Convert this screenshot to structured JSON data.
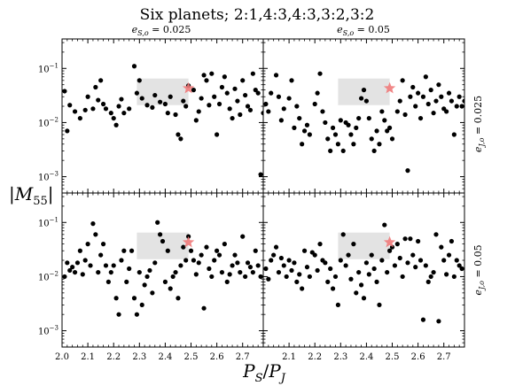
{
  "chart_data": {
    "type": "scatter",
    "title": "Six planets; 2:1,4:3,4:3,3:2,3:2",
    "xlabel": "P_S/P_J",
    "ylabel": "|M_55|",
    "x_ticks": [
      "2.0",
      "2.1",
      "2.2",
      "2.3",
      "2.4",
      "2.5",
      "2.6",
      "2.7"
    ],
    "y_ticks": [
      "10^-3",
      "10^-2",
      "10^-1"
    ],
    "xlim": [
      2.0,
      2.78
    ],
    "ylim": [
      0.0005,
      0.35
    ],
    "yscale": "log",
    "col_titles": [
      "e_{S,o} = 0.025",
      "e_{S,o} = 0.05"
    ],
    "row_labels": [
      "e_{J,o} = 0.025",
      "e_{J,o} = 0.05"
    ],
    "highlight_box": {
      "x": [
        2.29,
        2.49
      ],
      "y": [
        0.021,
        0.065
      ],
      "color": "#d9d9d9"
    },
    "target": {
      "x": 2.49,
      "y": 0.043,
      "marker": "star",
      "color": "#f07a7a"
    },
    "marker_color": "#000000",
    "panels": [
      {
        "row": 0,
        "col": 0,
        "points": [
          [
            2.01,
            0.038
          ],
          [
            2.02,
            0.007
          ],
          [
            2.03,
            0.021
          ],
          [
            2.05,
            0.016
          ],
          [
            2.07,
            0.012
          ],
          [
            2.09,
            0.017
          ],
          [
            2.1,
            0.03
          ],
          [
            2.12,
            0.018
          ],
          [
            2.13,
            0.045
          ],
          [
            2.14,
            0.026
          ],
          [
            2.15,
            0.06
          ],
          [
            2.16,
            0.022
          ],
          [
            2.17,
            0.018
          ],
          [
            2.19,
            0.015
          ],
          [
            2.2,
            0.012
          ],
          [
            2.21,
            0.009
          ],
          [
            2.22,
            0.02
          ],
          [
            2.23,
            0.027
          ],
          [
            2.24,
            0.015
          ],
          [
            2.26,
            0.018
          ],
          [
            2.28,
            0.11
          ],
          [
            2.29,
            0.035
          ],
          [
            2.3,
            0.06
          ],
          [
            2.31,
            0.028
          ],
          [
            2.33,
            0.021
          ],
          [
            2.35,
            0.019
          ],
          [
            2.36,
            0.032
          ],
          [
            2.38,
            0.024
          ],
          [
            2.4,
            0.022
          ],
          [
            2.41,
            0.015
          ],
          [
            2.42,
            0.03
          ],
          [
            2.44,
            0.014
          ],
          [
            2.45,
            0.006
          ],
          [
            2.46,
            0.005
          ],
          [
            2.47,
            0.025
          ],
          [
            2.48,
            0.02
          ],
          [
            2.49,
            0.048
          ],
          [
            2.51,
            0.04
          ],
          [
            2.52,
            0.011
          ],
          [
            2.53,
            0.016
          ],
          [
            2.54,
            0.028
          ],
          [
            2.55,
            0.075
          ],
          [
            2.56,
            0.06
          ],
          [
            2.57,
            0.021
          ],
          [
            2.58,
            0.08
          ],
          [
            2.59,
            0.03
          ],
          [
            2.6,
            0.006
          ],
          [
            2.61,
            0.022
          ],
          [
            2.62,
            0.045
          ],
          [
            2.63,
            0.07
          ],
          [
            2.64,
            0.035
          ],
          [
            2.65,
            0.018
          ],
          [
            2.66,
            0.012
          ],
          [
            2.67,
            0.042
          ],
          [
            2.68,
            0.025
          ],
          [
            2.69,
            0.014
          ],
          [
            2.7,
            0.06
          ],
          [
            2.71,
            0.032
          ],
          [
            2.72,
            0.02
          ],
          [
            2.73,
            0.017
          ],
          [
            2.74,
            0.08
          ],
          [
            2.75,
            0.04
          ],
          [
            2.76,
            0.035
          ],
          [
            2.77,
            0.0011
          ],
          [
            2.78,
            0.015
          ]
        ]
      },
      {
        "row": 0,
        "col": 1,
        "points": [
          [
            2.01,
            0.022
          ],
          [
            2.02,
            0.016
          ],
          [
            2.03,
            0.035
          ],
          [
            2.05,
            0.075
          ],
          [
            2.06,
            0.03
          ],
          [
            2.07,
            0.011
          ],
          [
            2.08,
            0.018
          ],
          [
            2.1,
            0.028
          ],
          [
            2.11,
            0.06
          ],
          [
            2.12,
            0.008
          ],
          [
            2.13,
            0.02
          ],
          [
            2.14,
            0.012
          ],
          [
            2.15,
            0.004
          ],
          [
            2.16,
            0.007
          ],
          [
            2.17,
            0.009
          ],
          [
            2.18,
            0.006
          ],
          [
            2.2,
            0.022
          ],
          [
            2.21,
            0.035
          ],
          [
            2.22,
            0.08
          ],
          [
            2.23,
            0.016
          ],
          [
            2.24,
            0.01
          ],
          [
            2.25,
            0.005
          ],
          [
            2.26,
            0.003
          ],
          [
            2.27,
            0.008
          ],
          [
            2.28,
            0.006
          ],
          [
            2.29,
            0.004
          ],
          [
            2.3,
            0.011
          ],
          [
            2.31,
            0.003
          ],
          [
            2.32,
            0.01
          ],
          [
            2.33,
            0.009
          ],
          [
            2.34,
            0.006
          ],
          [
            2.35,
            0.004
          ],
          [
            2.36,
            0.008
          ],
          [
            2.37,
            0.012
          ],
          [
            2.38,
            0.028
          ],
          [
            2.39,
            0.04
          ],
          [
            2.4,
            0.025
          ],
          [
            2.41,
            0.012
          ],
          [
            2.42,
            0.005
          ],
          [
            2.43,
            0.003
          ],
          [
            2.44,
            0.007
          ],
          [
            2.45,
            0.004
          ],
          [
            2.46,
            0.016
          ],
          [
            2.47,
            0.011
          ],
          [
            2.48,
            0.007
          ],
          [
            2.49,
            0.008
          ],
          [
            2.5,
            0.005
          ],
          [
            2.52,
            0.016
          ],
          [
            2.53,
            0.025
          ],
          [
            2.54,
            0.06
          ],
          [
            2.55,
            0.014
          ],
          [
            2.56,
            0.0013
          ],
          [
            2.57,
            0.03
          ],
          [
            2.58,
            0.045
          ],
          [
            2.59,
            0.02
          ],
          [
            2.6,
            0.035
          ],
          [
            2.61,
            0.012
          ],
          [
            2.62,
            0.03
          ],
          [
            2.63,
            0.07
          ],
          [
            2.64,
            0.022
          ],
          [
            2.65,
            0.04
          ],
          [
            2.66,
            0.015
          ],
          [
            2.67,
            0.025
          ],
          [
            2.68,
            0.05
          ],
          [
            2.69,
            0.03
          ],
          [
            2.7,
            0.018
          ],
          [
            2.71,
            0.016
          ],
          [
            2.72,
            0.035
          ],
          [
            2.73,
            0.025
          ],
          [
            2.74,
            0.006
          ],
          [
            2.75,
            0.02
          ],
          [
            2.76,
            0.03
          ],
          [
            2.77,
            0.02
          ],
          [
            2.78,
            0.025
          ]
        ]
      },
      {
        "row": 1,
        "col": 0,
        "points": [
          [
            2.01,
            0.01
          ],
          [
            2.02,
            0.018
          ],
          [
            2.03,
            0.013
          ],
          [
            2.04,
            0.015
          ],
          [
            2.05,
            0.012
          ],
          [
            2.06,
            0.018
          ],
          [
            2.07,
            0.03
          ],
          [
            2.08,
            0.011
          ],
          [
            2.09,
            0.02
          ],
          [
            2.1,
            0.04
          ],
          [
            2.11,
            0.016
          ],
          [
            2.12,
            0.095
          ],
          [
            2.13,
            0.06
          ],
          [
            2.14,
            0.012
          ],
          [
            2.15,
            0.025
          ],
          [
            2.16,
            0.04
          ],
          [
            2.17,
            0.016
          ],
          [
            2.18,
            0.008
          ],
          [
            2.19,
            0.012
          ],
          [
            2.2,
            0.016
          ],
          [
            2.21,
            0.004
          ],
          [
            2.22,
            0.002
          ],
          [
            2.23,
            0.02
          ],
          [
            2.24,
            0.03
          ],
          [
            2.25,
            0.008
          ],
          [
            2.26,
            0.014
          ],
          [
            2.27,
            0.03
          ],
          [
            2.28,
            0.004
          ],
          [
            2.29,
            0.002
          ],
          [
            2.3,
            0.012
          ],
          [
            2.31,
            0.003
          ],
          [
            2.32,
            0.007
          ],
          [
            2.33,
            0.01
          ],
          [
            2.34,
            0.013
          ],
          [
            2.35,
            0.005
          ],
          [
            2.36,
            0.018
          ],
          [
            2.37,
            0.1
          ],
          [
            2.38,
            0.06
          ],
          [
            2.39,
            0.045
          ],
          [
            2.4,
            0.008
          ],
          [
            2.41,
            0.03
          ],
          [
            2.42,
            0.006
          ],
          [
            2.43,
            0.01
          ],
          [
            2.44,
            0.012
          ],
          [
            2.45,
            0.004
          ],
          [
            2.46,
            0.016
          ],
          [
            2.47,
            0.035
          ],
          [
            2.48,
            0.02
          ],
          [
            2.49,
            0.055
          ],
          [
            2.5,
            0.03
          ],
          [
            2.51,
            0.02
          ],
          [
            2.52,
            0.011
          ],
          [
            2.53,
            0.018
          ],
          [
            2.54,
            0.025
          ],
          [
            2.55,
            0.0026
          ],
          [
            2.56,
            0.035
          ],
          [
            2.57,
            0.014
          ],
          [
            2.58,
            0.01
          ],
          [
            2.59,
            0.02
          ],
          [
            2.6,
            0.03
          ],
          [
            2.61,
            0.025
          ],
          [
            2.62,
            0.012
          ],
          [
            2.63,
            0.04
          ],
          [
            2.64,
            0.008
          ],
          [
            2.65,
            0.011
          ],
          [
            2.66,
            0.016
          ],
          [
            2.67,
            0.025
          ],
          [
            2.68,
            0.018
          ],
          [
            2.69,
            0.012
          ],
          [
            2.7,
            0.055
          ],
          [
            2.71,
            0.01
          ],
          [
            2.72,
            0.018
          ],
          [
            2.73,
            0.015
          ],
          [
            2.74,
            0.012
          ],
          [
            2.75,
            0.03
          ],
          [
            2.76,
            0.016
          ],
          [
            2.77,
            0.01
          ]
        ]
      },
      {
        "row": 1,
        "col": 1,
        "points": [
          [
            2.01,
            0.014
          ],
          [
            2.02,
            0.009
          ],
          [
            2.03,
            0.02
          ],
          [
            2.04,
            0.025
          ],
          [
            2.05,
            0.035
          ],
          [
            2.06,
            0.012
          ],
          [
            2.07,
            0.022
          ],
          [
            2.08,
            0.016
          ],
          [
            2.09,
            0.01
          ],
          [
            2.1,
            0.02
          ],
          [
            2.11,
            0.013
          ],
          [
            2.12,
            0.018
          ],
          [
            2.13,
            0.008
          ],
          [
            2.14,
            0.011
          ],
          [
            2.15,
            0.006
          ],
          [
            2.16,
            0.03
          ],
          [
            2.17,
            0.015
          ],
          [
            2.18,
            0.01
          ],
          [
            2.19,
            0.028
          ],
          [
            2.2,
            0.025
          ],
          [
            2.21,
            0.013
          ],
          [
            2.22,
            0.04
          ],
          [
            2.23,
            0.02
          ],
          [
            2.24,
            0.018
          ],
          [
            2.25,
            0.008
          ],
          [
            2.26,
            0.014
          ],
          [
            2.27,
            0.006
          ],
          [
            2.28,
            0.01
          ],
          [
            2.29,
            0.003
          ],
          [
            2.3,
            0.02
          ],
          [
            2.31,
            0.06
          ],
          [
            2.32,
            0.016
          ],
          [
            2.33,
            0.025
          ],
          [
            2.34,
            0.009
          ],
          [
            2.35,
            0.04
          ],
          [
            2.36,
            0.005
          ],
          [
            2.37,
            0.012
          ],
          [
            2.38,
            0.007
          ],
          [
            2.39,
            0.004
          ],
          [
            2.4,
            0.018
          ],
          [
            2.41,
            0.011
          ],
          [
            2.42,
            0.025
          ],
          [
            2.43,
            0.014
          ],
          [
            2.44,
            0.008
          ],
          [
            2.45,
            0.003
          ],
          [
            2.46,
            0.02
          ],
          [
            2.47,
            0.09
          ],
          [
            2.48,
            0.012
          ],
          [
            2.49,
            0.03
          ],
          [
            2.5,
            0.035
          ],
          [
            2.51,
            0.016
          ],
          [
            2.52,
            0.04
          ],
          [
            2.53,
            0.022
          ],
          [
            2.54,
            0.01
          ],
          [
            2.55,
            0.05
          ],
          [
            2.56,
            0.018
          ],
          [
            2.57,
            0.05
          ],
          [
            2.58,
            0.025
          ],
          [
            2.59,
            0.015
          ],
          [
            2.6,
            0.045
          ],
          [
            2.61,
            0.02
          ],
          [
            2.62,
            0.0016
          ],
          [
            2.63,
            0.016
          ],
          [
            2.64,
            0.008
          ],
          [
            2.65,
            0.01
          ],
          [
            2.66,
            0.012
          ],
          [
            2.67,
            0.06
          ],
          [
            2.68,
            0.0015
          ],
          [
            2.69,
            0.035
          ],
          [
            2.7,
            0.02
          ],
          [
            2.71,
            0.011
          ],
          [
            2.72,
            0.025
          ],
          [
            2.73,
            0.045
          ],
          [
            2.74,
            0.01
          ],
          [
            2.75,
            0.02
          ],
          [
            2.76,
            0.016
          ],
          [
            2.77,
            0.014
          ]
        ]
      }
    ]
  }
}
